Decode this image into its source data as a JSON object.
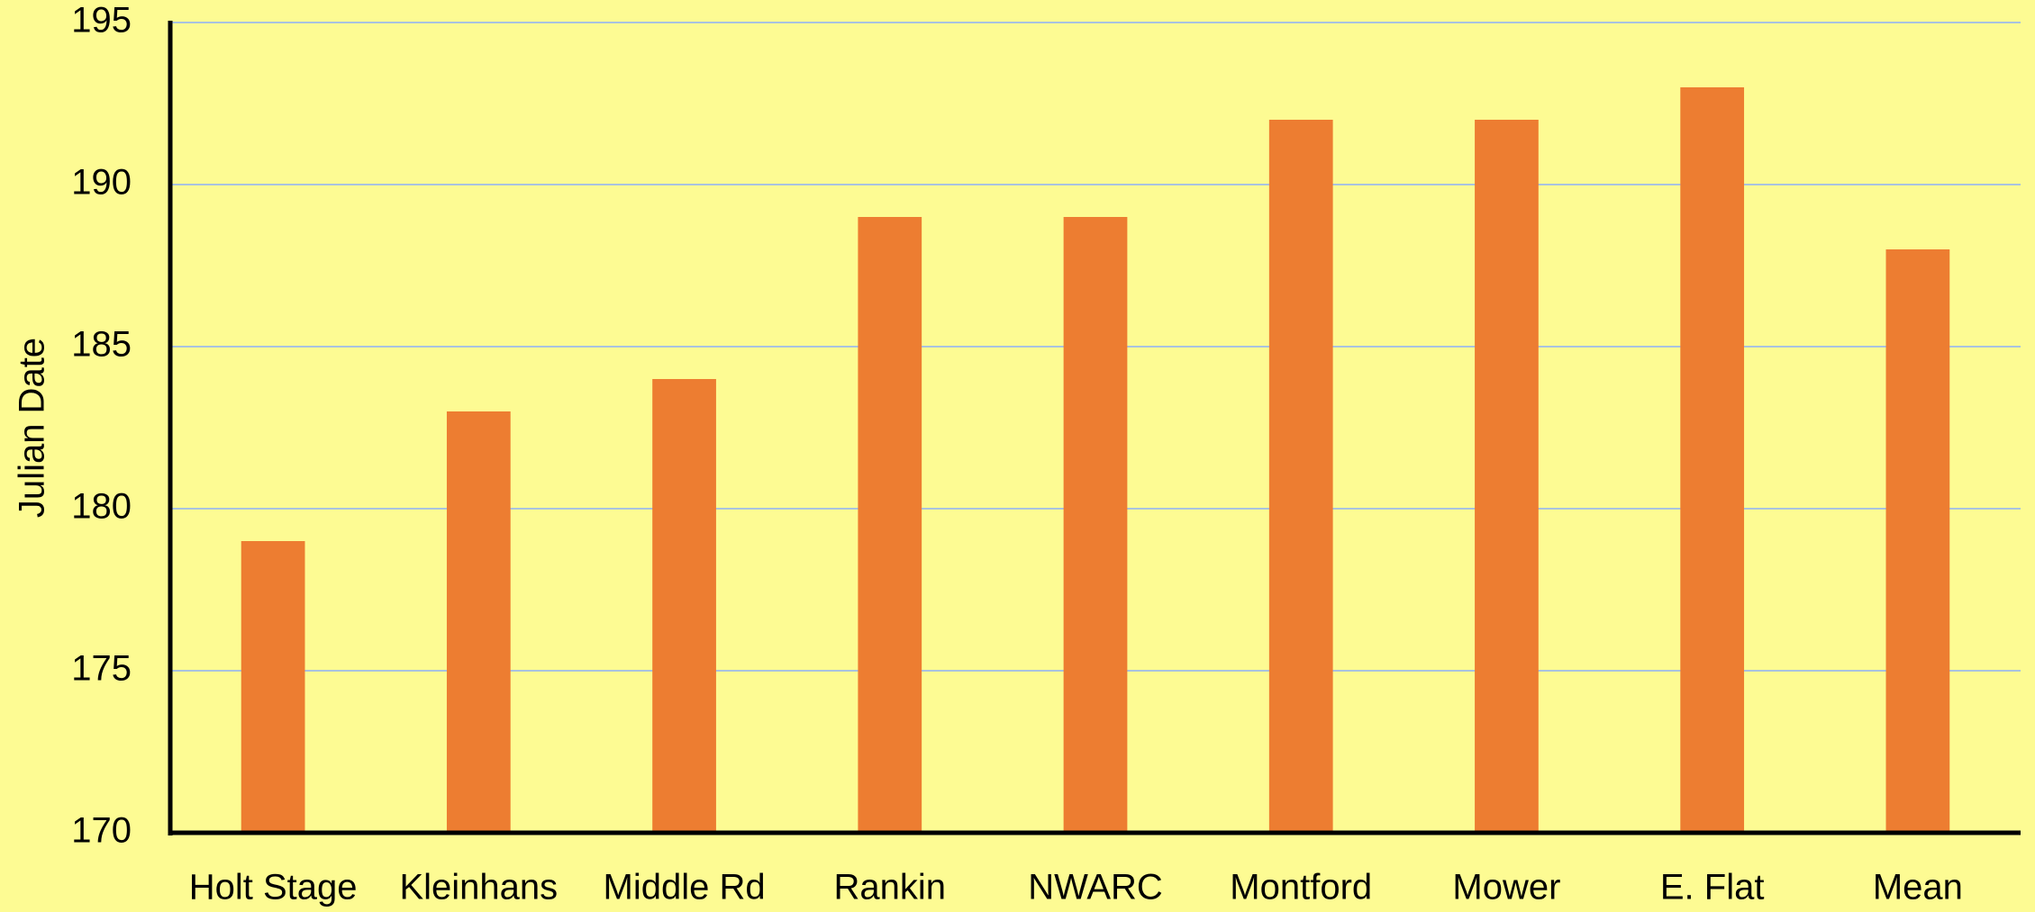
{
  "chart_data": {
    "type": "bar",
    "y_label": "Julian Date",
    "categories": [
      "Holt Stage",
      "Kleinhans",
      "Middle Rd",
      "Rankin",
      "NWARC",
      "Montford",
      "Mower",
      "E. Flat",
      "Mean"
    ],
    "values": [
      179,
      183,
      184,
      189,
      189,
      192,
      192,
      193,
      188
    ],
    "color": "#ed7d31",
    "ylim": [
      170,
      195
    ],
    "yticks": [
      170,
      175,
      180,
      185,
      190,
      195
    ],
    "grid": true
  }
}
